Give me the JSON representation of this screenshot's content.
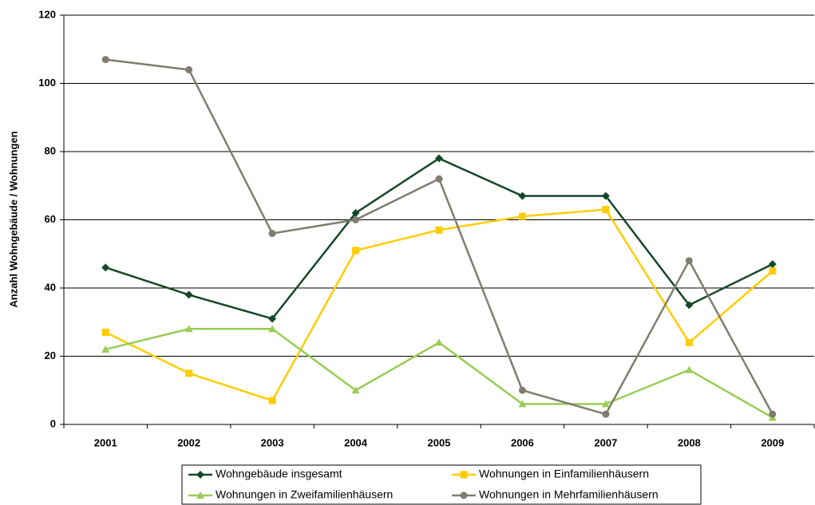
{
  "chart_data": {
    "type": "line",
    "y_label": "Anzahl Wohngebäude / Wohnungen",
    "categories": [
      "2001",
      "2002",
      "2003",
      "2004",
      "2005",
      "2006",
      "2007",
      "2008",
      "2009"
    ],
    "series": [
      {
        "name": "Wohngebäude insgesamt",
        "color": "#17472a",
        "marker": "diamond",
        "values": [
          46,
          38,
          31,
          62,
          78,
          67,
          67,
          35,
          47
        ]
      },
      {
        "name": "Wohnungen in Einfamilienhäusern",
        "color": "#ffcc00",
        "marker": "square",
        "values": [
          27,
          15,
          7,
          51,
          57,
          61,
          63,
          24,
          45
        ]
      },
      {
        "name": "Wohnungen in Zweifamilienhäusern",
        "color": "#99cc55",
        "marker": "triangle",
        "values": [
          22,
          28,
          28,
          10,
          24,
          6,
          6,
          16,
          2
        ]
      },
      {
        "name": "Wohnungen in Mehrfamilienhäusern",
        "color": "#807d70",
        "marker": "circle",
        "values": [
          107,
          104,
          56,
          60,
          72,
          10,
          3,
          48,
          3
        ]
      }
    ],
    "ylim": [
      0,
      120
    ],
    "yticks": [
      0,
      20,
      40,
      60,
      80,
      100,
      120
    ],
    "grid": true,
    "legend": "bottom"
  }
}
